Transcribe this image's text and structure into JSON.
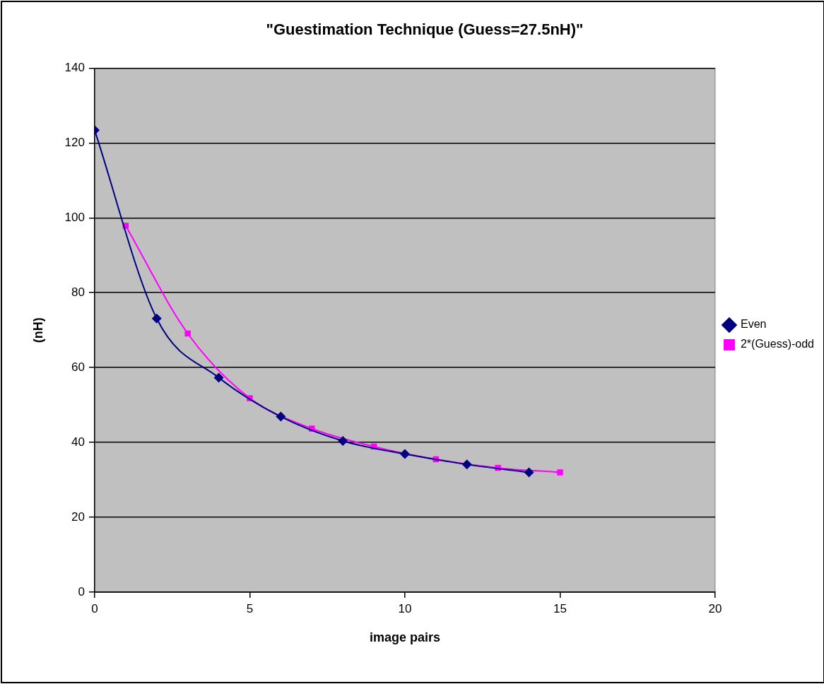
{
  "chart_data": {
    "type": "line",
    "title": "\"Guestimation Technique (Guess=27.5nH)\"",
    "xlabel": "image pairs",
    "ylabel": "(nH)",
    "xlim": [
      0,
      20
    ],
    "xticks": [
      0,
      5,
      10,
      15,
      20
    ],
    "ylim": [
      0,
      140
    ],
    "yticks": [
      0,
      20,
      40,
      60,
      80,
      100,
      120,
      140
    ],
    "grid": "y",
    "legend": "right",
    "series": [
      {
        "name": "Even",
        "color": "#000080",
        "marker": "diamond",
        "x": [
          0,
          2,
          4,
          6,
          8,
          10,
          12,
          14
        ],
        "values": [
          123.4,
          73.1,
          57.3,
          46.9,
          40.4,
          36.9,
          34.1,
          32.0
        ]
      },
      {
        "name": "2*(Guess)-odd",
        "color": "#ff00ff",
        "marker": "square",
        "x": [
          1,
          3,
          5,
          7,
          9,
          11,
          13,
          15
        ],
        "values": [
          97.9,
          69.1,
          51.8,
          43.7,
          38.9,
          35.5,
          33.2,
          32.0
        ]
      }
    ]
  }
}
